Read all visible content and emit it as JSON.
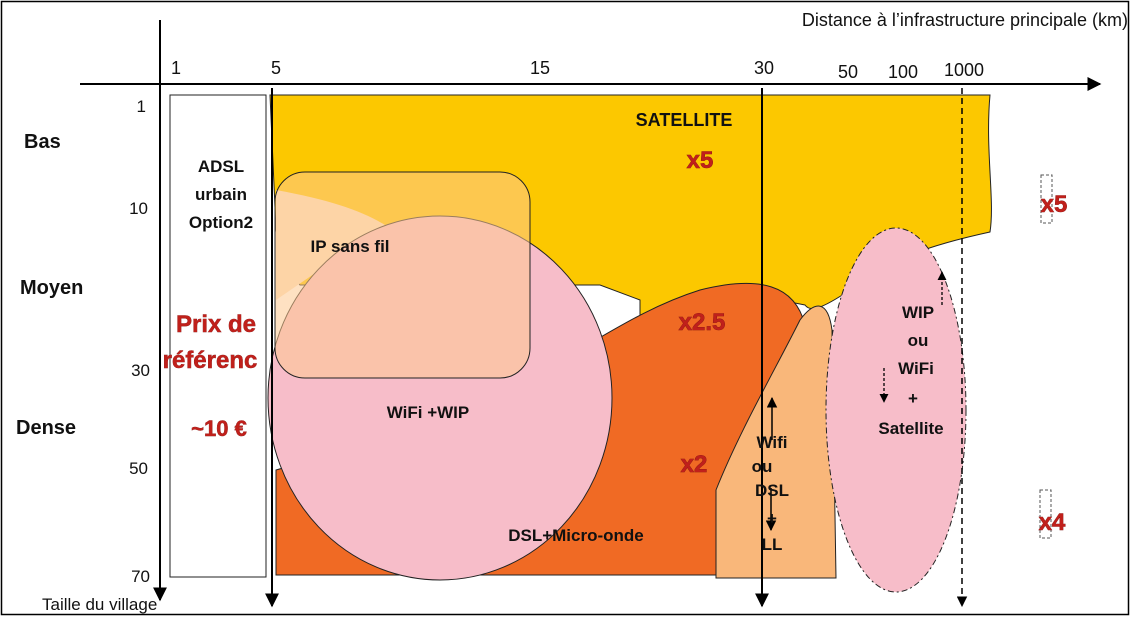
{
  "x_axis": {
    "title": "Distance à l’infrastructure principale (km)",
    "ticks": [
      "1",
      "5",
      "15",
      "30",
      "50",
      "100",
      "1000"
    ]
  },
  "y_axis": {
    "title": "Taille du village",
    "ticks": [
      "1",
      "10",
      "30",
      "50",
      "70"
    ],
    "categories": [
      "Bas",
      "Moyen",
      "Dense"
    ]
  },
  "regions": {
    "adsl": [
      "ADSL",
      "urbain",
      "Option2"
    ],
    "satellite": "SATELLITE",
    "ip_sans_fil": "IP sans fil",
    "wifi_wip": "WiFi +WIP",
    "dsl_micro": "DSL+Micro-onde",
    "wifi_dsl_ll": [
      "Wifi",
      "ou",
      "DSL",
      "+",
      "LL"
    ],
    "wip_wifi_sat": [
      "WIP",
      "ou",
      "WiFi",
      "+",
      "Satellite"
    ]
  },
  "reference_price": {
    "lines": [
      "Prix de",
      "référenc"
    ],
    "value": "~10 €"
  },
  "multipliers": {
    "satellite": "x5",
    "right_top": "x5",
    "mid": "x2.5",
    "low": "x2",
    "right_bottom": "x4"
  },
  "colors": {
    "satellite": "#fcc800",
    "ip_sans_fil": "#fdd7a0",
    "ip_sans_fil_light": "#fde2c2",
    "wifi": "#f7bdc9",
    "dsl": "#f06a24",
    "dsl_ll": "#f9b77a",
    "accent": "#c0201b"
  }
}
